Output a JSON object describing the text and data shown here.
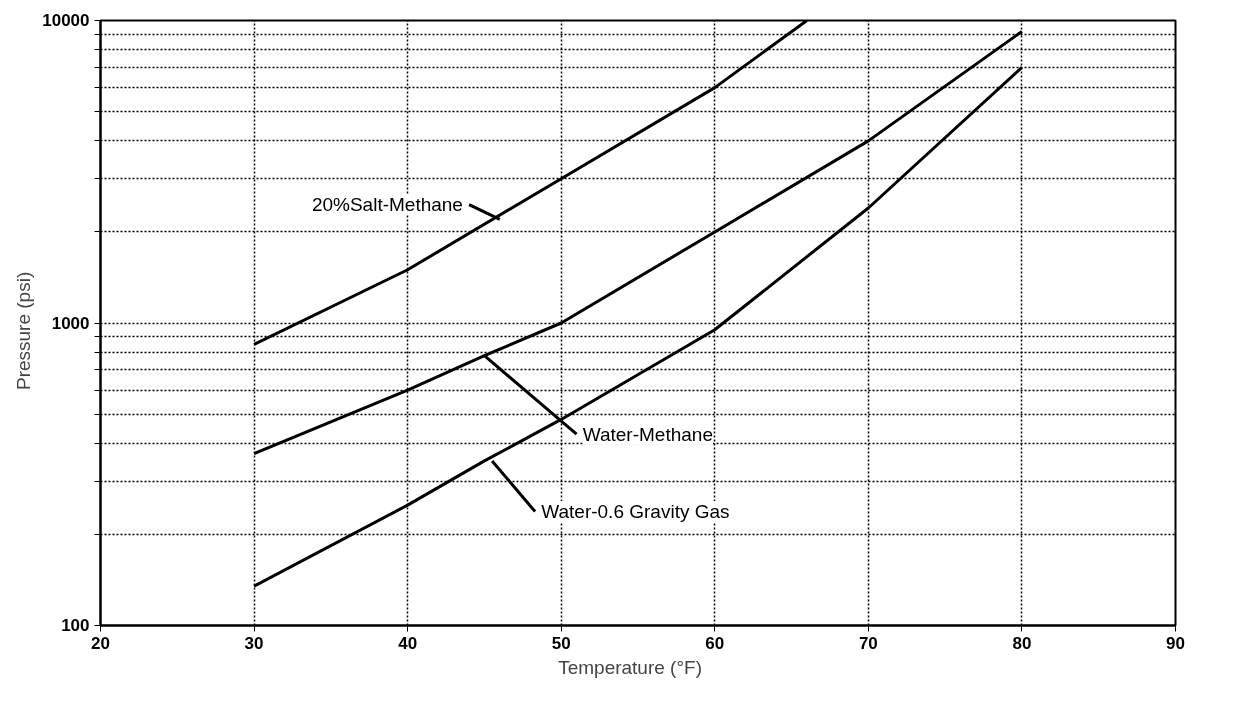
{
  "chart_data": {
    "type": "line",
    "xlabel": "Temperature    (°F)",
    "ylabel": "Pressure    (psi)",
    "log": "y",
    "xlim": [
      20,
      90
    ],
    "xticks": [
      20,
      30,
      40,
      50,
      60,
      70,
      80,
      90
    ],
    "ylim": [
      100,
      10000
    ],
    "yticks": [
      100,
      {
        "value": 200,
        "label": null
      },
      {
        "value": 300,
        "label": null
      },
      {
        "value": 400,
        "label": null
      },
      {
        "value": 500,
        "label": null
      },
      {
        "value": 600,
        "label": null
      },
      {
        "value": 700,
        "label": null
      },
      {
        "value": 800,
        "label": null
      },
      {
        "value": 900,
        "label": null
      },
      1000,
      {
        "value": 2000,
        "label": null
      },
      {
        "value": 3000,
        "label": null
      },
      {
        "value": 4000,
        "label": null
      },
      {
        "value": 5000,
        "label": null
      },
      {
        "value": 6000,
        "label": null
      },
      {
        "value": 7000,
        "label": null
      },
      {
        "value": 8000,
        "label": null
      },
      {
        "value": 9000,
        "label": null
      },
      10000
    ],
    "grid": true,
    "line_style": "solid",
    "series": [
      {
        "color": "#000000",
        "x": [
          30,
          40,
          50,
          60,
          66
        ],
        "values": [
          850,
          1500,
          3000,
          6000,
          10000
        ]
      },
      {
        "color": "#000000",
        "x": [
          30,
          40,
          45,
          50,
          60,
          70,
          80
        ],
        "values": [
          370,
          600,
          780,
          1000,
          2000,
          4000,
          9200
        ]
      },
      {
        "color": "#000000",
        "x": [
          30,
          40,
          45,
          50,
          60,
          70,
          80
        ],
        "values": [
          135,
          250,
          350,
          480,
          950,
          2400,
          7000
        ]
      }
    ],
    "annotations": [
      {
        "text": "20%Salt-Methane",
        "x": 46,
        "y": 2200
      },
      {
        "text": "Water-Methane",
        "x": 45,
        "y": 780
      },
      {
        "text": "Water-0.6  Gravity  Gas",
        "x": 45.5,
        "y": 350
      }
    ]
  }
}
